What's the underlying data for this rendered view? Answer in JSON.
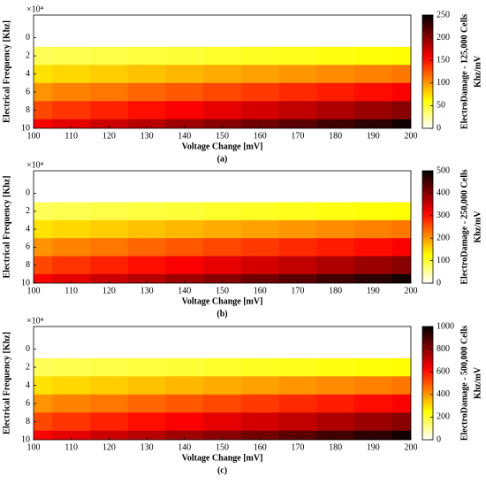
{
  "chart_data": [
    {
      "type": "heatmap",
      "caption": "(a)",
      "x_label": "Voltage  Change [mV]",
      "y_label": "Electrical Frequency [Khz]",
      "y_scale_label": "×10⁴",
      "colorbar_label": [
        "ElectroDamage - 125,000 Cells",
        "Khz/mV"
      ],
      "colormap": "hot-reversed",
      "x": [
        100,
        110,
        120,
        130,
        140,
        150,
        160,
        170,
        180,
        190,
        200
      ],
      "y": [
        0,
        2,
        4,
        6,
        8,
        10
      ],
      "values": [
        [
          0,
          0,
          0,
          0,
          0,
          0,
          0,
          0,
          0,
          0,
          0
        ],
        [
          41,
          43,
          45,
          47,
          49,
          52,
          54,
          56,
          58,
          60,
          63
        ],
        [
          73,
          77,
          81,
          85,
          89,
          93,
          97,
          101,
          105,
          109,
          113
        ],
        [
          102,
          108,
          113,
          119,
          124,
          130,
          135,
          141,
          146,
          152,
          158
        ],
        [
          130,
          137,
          144,
          151,
          158,
          165,
          172,
          179,
          186,
          193,
          200
        ],
        [
          158,
          166,
          175,
          183,
          192,
          200,
          209,
          217,
          226,
          234,
          243
        ]
      ],
      "xlim": [
        100,
        200
      ],
      "xticks": [
        100,
        110,
        120,
        130,
        140,
        150,
        160,
        170,
        180,
        190,
        200
      ],
      "ylim": [
        -2.5,
        10
      ],
      "yticks": [
        0,
        2,
        4,
        6,
        8,
        10
      ],
      "clim": [
        0,
        250
      ],
      "cticks": [
        0,
        50,
        100,
        150,
        200,
        250
      ]
    },
    {
      "type": "heatmap",
      "caption": "(b)",
      "x_label": "Voltage  Change [mV]",
      "y_label": "Electrical Frequency [Khz]",
      "y_scale_label": "×10⁴",
      "colorbar_label": [
        "ElectroDamage - 250,000 Cells",
        "Khz/mV"
      ],
      "colormap": "hot-reversed",
      "x": [
        100,
        110,
        120,
        130,
        140,
        150,
        160,
        170,
        180,
        190,
        200
      ],
      "y": [
        0,
        2,
        4,
        6,
        8,
        10
      ],
      "values": [
        [
          0,
          0,
          0,
          0,
          0,
          0,
          0,
          0,
          0,
          0,
          0
        ],
        [
          82,
          86,
          90,
          94,
          98,
          104,
          108,
          112,
          116,
          120,
          126
        ],
        [
          146,
          154,
          162,
          170,
          178,
          186,
          194,
          202,
          210,
          218,
          226
        ],
        [
          204,
          216,
          226,
          238,
          248,
          260,
          270,
          282,
          292,
          304,
          316
        ],
        [
          260,
          274,
          288,
          302,
          316,
          330,
          344,
          358,
          372,
          386,
          400
        ],
        [
          316,
          332,
          350,
          366,
          384,
          400,
          418,
          434,
          452,
          468,
          486
        ]
      ],
      "xlim": [
        100,
        200
      ],
      "xticks": [
        100,
        110,
        120,
        130,
        140,
        150,
        160,
        170,
        180,
        190,
        200
      ],
      "ylim": [
        -2.5,
        10
      ],
      "yticks": [
        0,
        2,
        4,
        6,
        8,
        10
      ],
      "clim": [
        0,
        500
      ],
      "cticks": [
        0,
        100,
        200,
        300,
        400,
        500
      ]
    },
    {
      "type": "heatmap",
      "caption": "(c)",
      "x_label": "Voltage  Change [mV]",
      "y_label": "Electrical Frequency [Khz]",
      "y_scale_label": "×10⁴",
      "colorbar_label": [
        "ElectroDamage - 500,000 Cells",
        "Khz/mV"
      ],
      "colormap": "hot-reversed",
      "x": [
        100,
        110,
        120,
        130,
        140,
        150,
        160,
        170,
        180,
        190,
        200
      ],
      "y": [
        0,
        2,
        4,
        6,
        8,
        10
      ],
      "values": [
        [
          0,
          0,
          0,
          0,
          0,
          0,
          0,
          0,
          0,
          0,
          0
        ],
        [
          164,
          172,
          180,
          188,
          196,
          208,
          216,
          224,
          232,
          240,
          252
        ],
        [
          292,
          308,
          324,
          340,
          356,
          372,
          388,
          404,
          420,
          436,
          452
        ],
        [
          408,
          432,
          452,
          476,
          496,
          520,
          540,
          564,
          584,
          608,
          632
        ],
        [
          520,
          548,
          576,
          604,
          632,
          660,
          688,
          716,
          744,
          772,
          800
        ],
        [
          632,
          664,
          700,
          732,
          768,
          800,
          836,
          868,
          904,
          936,
          972
        ]
      ],
      "xlim": [
        100,
        200
      ],
      "xticks": [
        100,
        110,
        120,
        130,
        140,
        150,
        160,
        170,
        180,
        190,
        200
      ],
      "ylim": [
        -2.5,
        10
      ],
      "yticks": [
        0,
        2,
        4,
        6,
        8,
        10
      ],
      "clim": [
        0,
        1000
      ],
      "cticks": [
        0,
        200,
        400,
        600,
        800,
        1000
      ]
    }
  ]
}
